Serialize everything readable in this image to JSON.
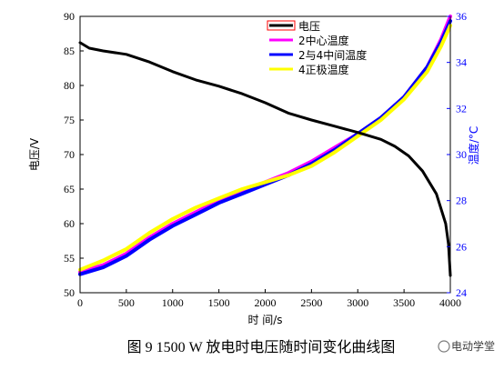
{
  "chart_data": {
    "type": "line",
    "xlabel": "时 间/s",
    "ylabel_left": "电压/V",
    "ylabel_right": "温度/°C",
    "xlim": [
      0,
      4000
    ],
    "ylim_left": [
      50,
      90
    ],
    "ylim_right": [
      24,
      36
    ],
    "xticks": [
      0,
      500,
      1000,
      1500,
      2000,
      2500,
      3000,
      3500,
      4000
    ],
    "yticks_left": [
      50,
      55,
      60,
      65,
      70,
      75,
      80,
      85,
      90
    ],
    "yticks_right": [
      24,
      26,
      28,
      30,
      32,
      34,
      36
    ],
    "grid": false,
    "legend_position": "top-right",
    "legend": [
      "电压",
      "2中心温度",
      "2与4中间温度",
      "4正极温度"
    ],
    "series": [
      {
        "name": "电压",
        "axis": "left",
        "color": "#000000",
        "points": [
          [
            0,
            86.2
          ],
          [
            100,
            85.4
          ],
          [
            250,
            85.0
          ],
          [
            500,
            84.5
          ],
          [
            750,
            83.4
          ],
          [
            1000,
            82.0
          ],
          [
            1250,
            80.8
          ],
          [
            1500,
            79.9
          ],
          [
            1750,
            78.8
          ],
          [
            2000,
            77.5
          ],
          [
            2250,
            76.0
          ],
          [
            2500,
            75.0
          ],
          [
            2750,
            74.1
          ],
          [
            3000,
            73.2
          ],
          [
            3250,
            72.2
          ],
          [
            3400,
            71.2
          ],
          [
            3550,
            69.8
          ],
          [
            3700,
            67.6
          ],
          [
            3850,
            64.3
          ],
          [
            3950,
            60.0
          ],
          [
            3980,
            57.0
          ],
          [
            4000,
            52.5
          ]
        ]
      },
      {
        "name": "2中心温度",
        "axis": "right",
        "color": "#ff00ff",
        "points": [
          [
            0,
            24.9
          ],
          [
            250,
            25.2
          ],
          [
            500,
            25.7
          ],
          [
            750,
            26.4
          ],
          [
            1000,
            27.0
          ],
          [
            1250,
            27.5
          ],
          [
            1500,
            28.0
          ],
          [
            1750,
            28.4
          ],
          [
            2000,
            28.8
          ],
          [
            2250,
            29.2
          ],
          [
            2500,
            29.7
          ],
          [
            2750,
            30.3
          ],
          [
            3000,
            30.9
          ],
          [
            3250,
            31.6
          ],
          [
            3500,
            32.5
          ],
          [
            3750,
            33.8
          ],
          [
            3900,
            35.0
          ],
          [
            4000,
            36.0
          ]
        ]
      },
      {
        "name": "2与4中间温度",
        "axis": "right",
        "color": "#0000ff",
        "points": [
          [
            0,
            24.8
          ],
          [
            250,
            25.1
          ],
          [
            500,
            25.6
          ],
          [
            750,
            26.3
          ],
          [
            1000,
            26.9
          ],
          [
            1250,
            27.4
          ],
          [
            1500,
            27.9
          ],
          [
            1750,
            28.3
          ],
          [
            2000,
            28.7
          ],
          [
            2250,
            29.1
          ],
          [
            2500,
            29.6
          ],
          [
            2750,
            30.2
          ],
          [
            3000,
            30.9
          ],
          [
            3250,
            31.6
          ],
          [
            3500,
            32.5
          ],
          [
            3750,
            33.8
          ],
          [
            3900,
            34.9
          ],
          [
            4000,
            35.8
          ]
        ]
      },
      {
        "name": "4正极温度",
        "axis": "right",
        "color": "#ffff00",
        "points": [
          [
            0,
            25.0
          ],
          [
            250,
            25.4
          ],
          [
            500,
            25.9
          ],
          [
            750,
            26.6
          ],
          [
            1000,
            27.2
          ],
          [
            1250,
            27.7
          ],
          [
            1500,
            28.1
          ],
          [
            1750,
            28.5
          ],
          [
            2000,
            28.8
          ],
          [
            2250,
            29.1
          ],
          [
            2500,
            29.5
          ],
          [
            2750,
            30.1
          ],
          [
            3000,
            30.8
          ],
          [
            3250,
            31.5
          ],
          [
            3500,
            32.4
          ],
          [
            3750,
            33.6
          ],
          [
            3900,
            34.7
          ],
          [
            4000,
            35.6
          ]
        ]
      }
    ]
  },
  "caption": "图 9 1500 W 放电时电压随时间变化曲线图",
  "watermark": "电动学堂"
}
